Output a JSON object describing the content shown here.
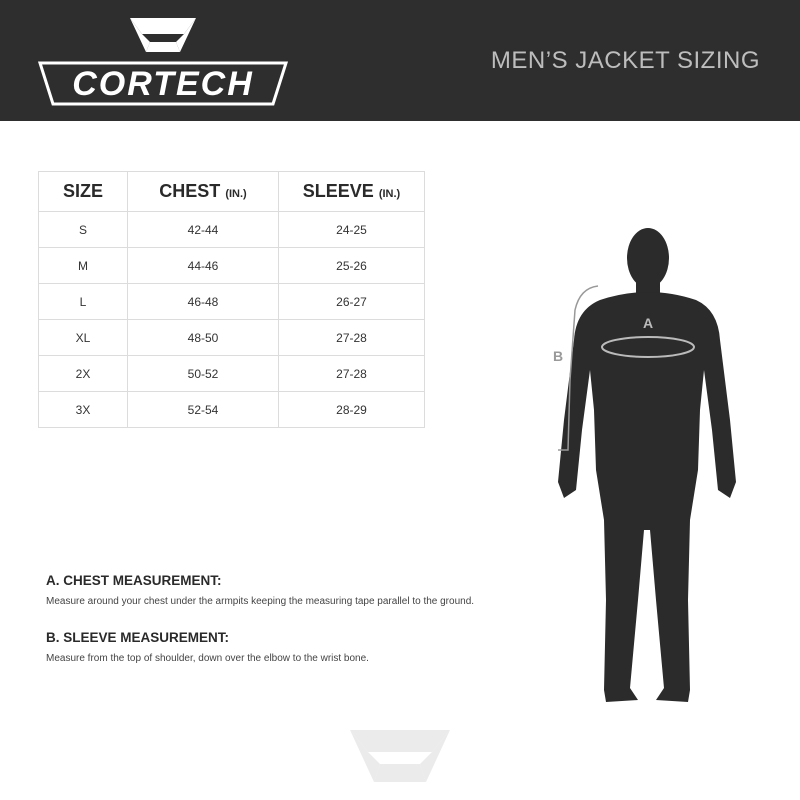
{
  "header": {
    "brand": "CORTECH",
    "title": "MEN’S JACKET SIZING"
  },
  "table": {
    "headers": [
      {
        "label": "SIZE",
        "unit": ""
      },
      {
        "label": "CHEST",
        "unit": "(IN.)"
      },
      {
        "label": "SLEEVE",
        "unit": "(IN.)"
      }
    ],
    "rows": [
      [
        "S",
        "42-44",
        "24-25"
      ],
      [
        "M",
        "44-46",
        "25-26"
      ],
      [
        "L",
        "46-48",
        "26-27"
      ],
      [
        "XL",
        "48-50",
        "27-28"
      ],
      [
        "2X",
        "50-52",
        "27-28"
      ],
      [
        "3X",
        "52-54",
        "28-29"
      ]
    ]
  },
  "figure": {
    "label_a": "A",
    "label_b": "B"
  },
  "instructions": [
    {
      "title": "A. CHEST MEASUREMENT:",
      "text": "Measure around your chest under the armpits keeping the measuring tape parallel to the ground."
    },
    {
      "title": "B. SLEEVE MEASUREMENT:",
      "text": "Measure from the top of shoulder, down over the elbow to the wrist bone."
    }
  ],
  "colors": {
    "header_bg": "#2e2e2e",
    "silhouette": "#2b2b2b"
  }
}
